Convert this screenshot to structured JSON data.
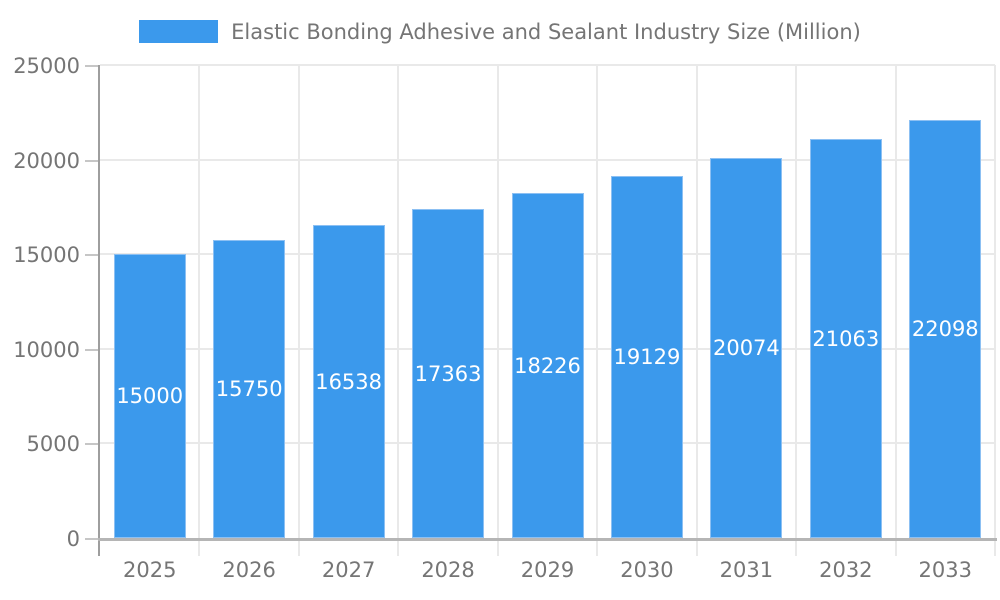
{
  "chart_data": {
    "type": "bar",
    "title": "Elastic Bonding Adhesive and Sealant Industry Size (Million)",
    "legend_entries": [
      "Elastic Bonding Adhesive and Sealant Industry Size (Million)"
    ],
    "legend_position": "top-center",
    "categories": [
      "2025",
      "2026",
      "2027",
      "2028",
      "2029",
      "2030",
      "2031",
      "2032",
      "2033"
    ],
    "values": [
      15000,
      15750,
      16538,
      17363,
      18226,
      19129,
      20074,
      21063,
      22098
    ],
    "value_labels_shown": true,
    "xlabel": "",
    "ylabel": "",
    "ylim": [
      0,
      25000
    ],
    "yticks": [
      0,
      5000,
      10000,
      15000,
      20000,
      25000
    ],
    "grid": "both"
  },
  "style": {
    "bar_color": "#3B99EC",
    "bar_edge_color": "#8CC0F3",
    "text_color": "#757575",
    "value_text_color": "#FFFFFF",
    "grid_color": "#E9E9E9",
    "axis_color": "#9E9E9E",
    "baseline_color": "#B5B5B5",
    "tick_color": "#C6C6C6",
    "background": "#FFFFFF"
  }
}
